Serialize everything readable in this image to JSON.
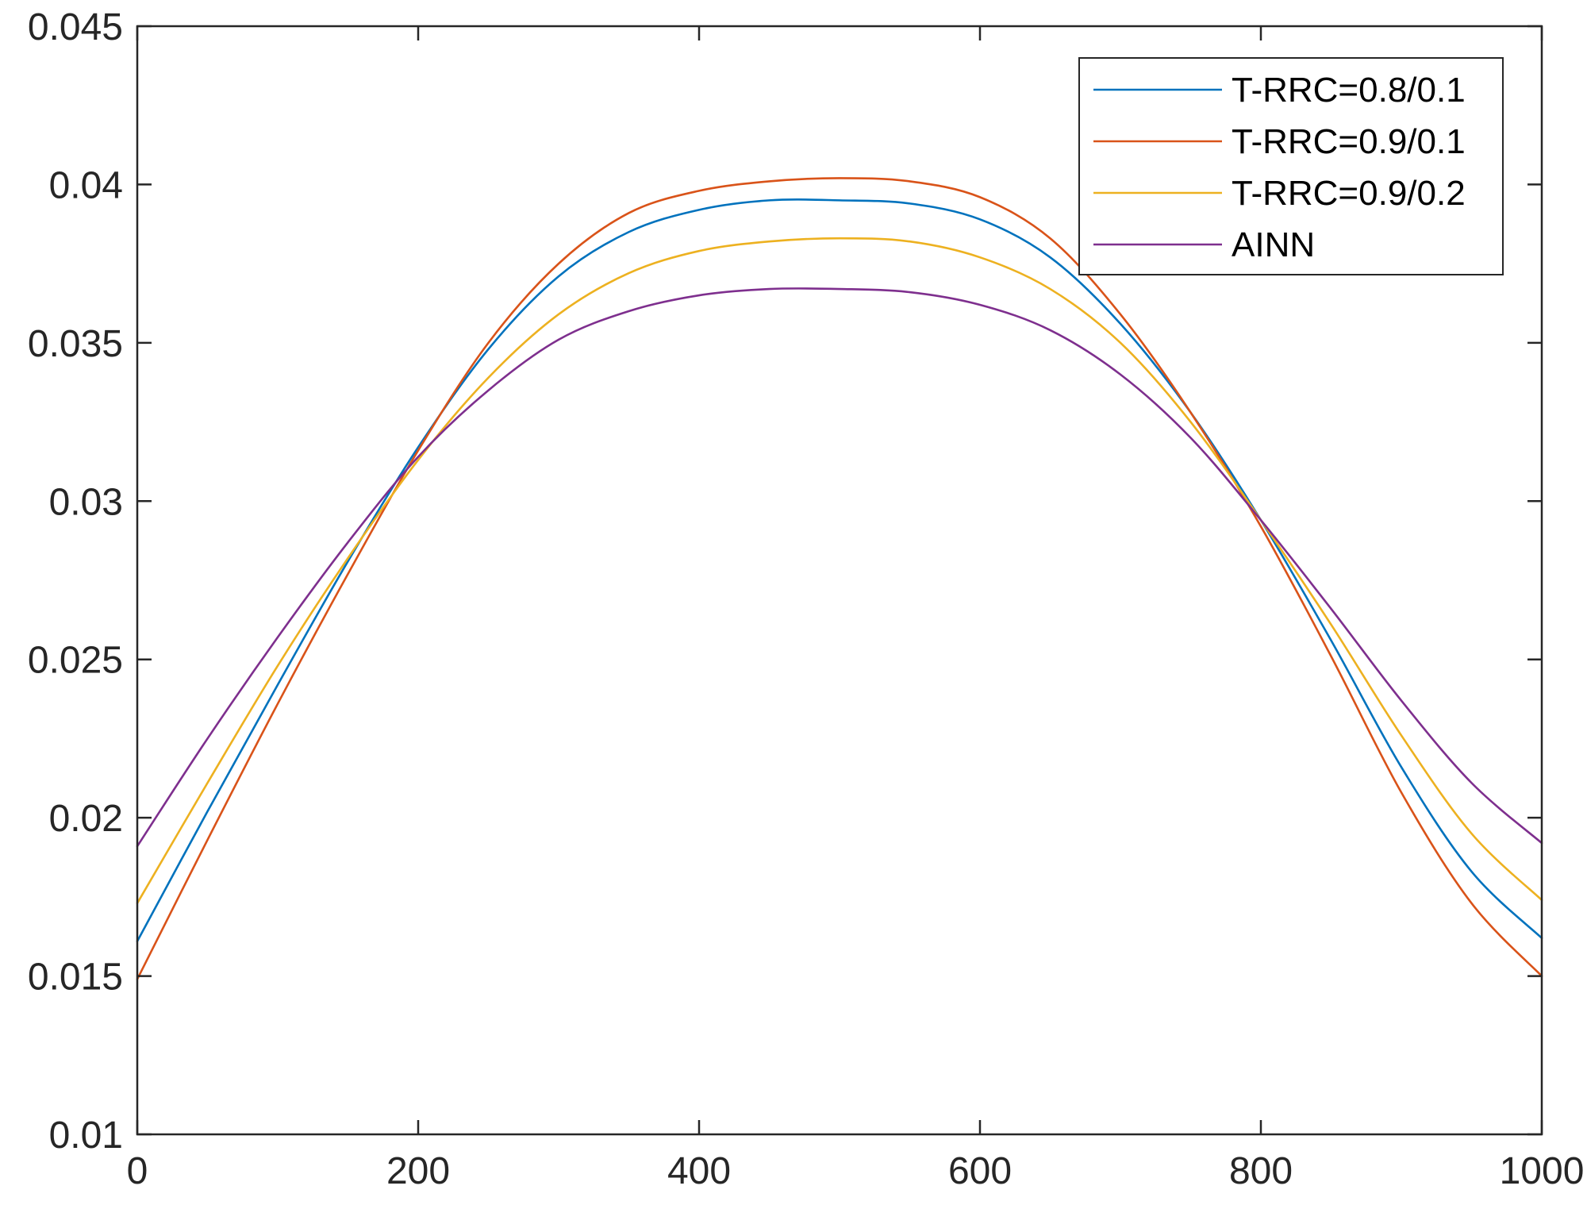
{
  "chart_data": {
    "type": "line",
    "title": "",
    "xlabel": "",
    "ylabel": "",
    "xlim": [
      0,
      1000
    ],
    "ylim": [
      0.01,
      0.045
    ],
    "x_ticks": [
      "0",
      "200",
      "400",
      "600",
      "800",
      "1000"
    ],
    "y_ticks": [
      "0.01",
      "0.015",
      "0.02",
      "0.025",
      "0.03",
      "0.035",
      "0.04",
      "0.045"
    ],
    "grid": false,
    "legend_position": "top-right",
    "x": [
      0,
      50,
      100,
      150,
      200,
      250,
      300,
      350,
      400,
      450,
      500,
      550,
      600,
      650,
      700,
      750,
      800,
      850,
      900,
      950,
      1000
    ],
    "series": [
      {
        "name": "T-RRC=0.8/0.1",
        "color": "#0072BD",
        "values": [
          0.0161,
          0.0202,
          0.0242,
          0.0281,
          0.0317,
          0.0348,
          0.0371,
          0.0385,
          0.0392,
          0.0395,
          0.0395,
          0.0394,
          0.0389,
          0.0377,
          0.0356,
          0.0328,
          0.0294,
          0.0256,
          0.0216,
          0.0183,
          0.0162
        ]
      },
      {
        "name": "T-RRC=0.9/0.1",
        "color": "#D95319",
        "values": [
          0.0149,
          0.0193,
          0.0236,
          0.0277,
          0.0316,
          0.035,
          0.0375,
          0.0391,
          0.0398,
          0.0401,
          0.0402,
          0.0401,
          0.0396,
          0.0383,
          0.0359,
          0.0328,
          0.0292,
          0.0251,
          0.0208,
          0.0173,
          0.015
        ]
      },
      {
        "name": "T-RRC=0.9/0.2",
        "color": "#EDB120",
        "values": [
          0.0173,
          0.0211,
          0.0248,
          0.0282,
          0.0313,
          0.0339,
          0.0359,
          0.0372,
          0.0379,
          0.0382,
          0.0383,
          0.0382,
          0.0377,
          0.0367,
          0.035,
          0.0325,
          0.0294,
          0.0261,
          0.0226,
          0.0195,
          0.0174
        ]
      },
      {
        "name": "AINN",
        "color": "#7E2F8E",
        "values": [
          0.0191,
          0.0225,
          0.0257,
          0.0287,
          0.0314,
          0.0335,
          0.0351,
          0.036,
          0.0365,
          0.0367,
          0.0367,
          0.0366,
          0.0362,
          0.0354,
          0.034,
          0.032,
          0.0294,
          0.0266,
          0.0237,
          0.0211,
          0.0192
        ]
      }
    ]
  }
}
